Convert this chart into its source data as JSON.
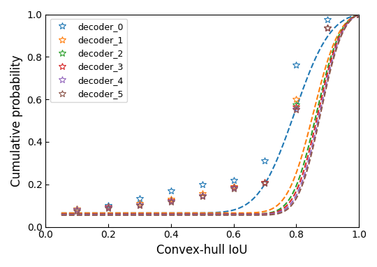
{
  "title": "",
  "xlabel": "Convex-hull IoU",
  "ylabel": "Cumulative probability",
  "xlim": [
    0.0,
    1.0
  ],
  "ylim": [
    0.0,
    1.0
  ],
  "x_ticks": [
    0.0,
    0.2,
    0.4,
    0.6,
    0.8,
    1.0
  ],
  "y_ticks": [
    0.0,
    0.2,
    0.4,
    0.6,
    0.8,
    1.0
  ],
  "series": [
    {
      "label": "decoder_0",
      "color": "#1f77b4",
      "marker_x": [
        0.1,
        0.2,
        0.3,
        0.4,
        0.5,
        0.6,
        0.7,
        0.8,
        0.9,
        1.0
      ],
      "marker_y": [
        0.085,
        0.1,
        0.135,
        0.17,
        0.2,
        0.22,
        0.31,
        0.76,
        0.975,
        1.0
      ],
      "mu": 0.78,
      "sigma": 0.1
    },
    {
      "label": "decoder_1",
      "color": "#ff7f0e",
      "marker_x": [
        0.1,
        0.2,
        0.3,
        0.4,
        0.5,
        0.6,
        0.7,
        0.8,
        0.9,
        1.0
      ],
      "marker_y": [
        0.085,
        0.095,
        0.11,
        0.13,
        0.155,
        0.19,
        0.21,
        0.6,
        0.935,
        1.0
      ],
      "mu": 0.84,
      "sigma": 0.07
    },
    {
      "label": "decoder_2",
      "color": "#2ca02c",
      "marker_x": [
        0.1,
        0.2,
        0.3,
        0.4,
        0.5,
        0.6,
        0.7,
        0.8,
        0.9,
        1.0
      ],
      "marker_y": [
        0.082,
        0.093,
        0.105,
        0.125,
        0.148,
        0.185,
        0.205,
        0.575,
        0.935,
        1.0
      ],
      "mu": 0.85,
      "sigma": 0.065
    },
    {
      "label": "decoder_3",
      "color": "#d62728",
      "marker_x": [
        0.1,
        0.2,
        0.3,
        0.4,
        0.5,
        0.6,
        0.7,
        0.8,
        0.9,
        1.0
      ],
      "marker_y": [
        0.082,
        0.093,
        0.105,
        0.123,
        0.148,
        0.185,
        0.21,
        0.565,
        0.935,
        1.0
      ],
      "mu": 0.855,
      "sigma": 0.063
    },
    {
      "label": "decoder_4",
      "color": "#9467bd",
      "marker_x": [
        0.1,
        0.2,
        0.3,
        0.4,
        0.5,
        0.6,
        0.7,
        0.8,
        0.9,
        1.0
      ],
      "marker_y": [
        0.08,
        0.09,
        0.104,
        0.12,
        0.145,
        0.182,
        0.205,
        0.555,
        0.935,
        1.0
      ],
      "mu": 0.86,
      "sigma": 0.062
    },
    {
      "label": "decoder_5",
      "color": "#8c564b",
      "marker_x": [
        0.1,
        0.2,
        0.3,
        0.4,
        0.5,
        0.6,
        0.7,
        0.8,
        0.9,
        1.0
      ],
      "marker_y": [
        0.075,
        0.088,
        0.102,
        0.118,
        0.143,
        0.18,
        0.205,
        0.55,
        0.935,
        1.0
      ],
      "mu": 0.865,
      "sigma": 0.062
    }
  ],
  "figsize": [
    5.4,
    3.82
  ],
  "dpi": 100,
  "marker": "*",
  "markersize": 7,
  "linestyle": "--",
  "linewidth": 1.5
}
